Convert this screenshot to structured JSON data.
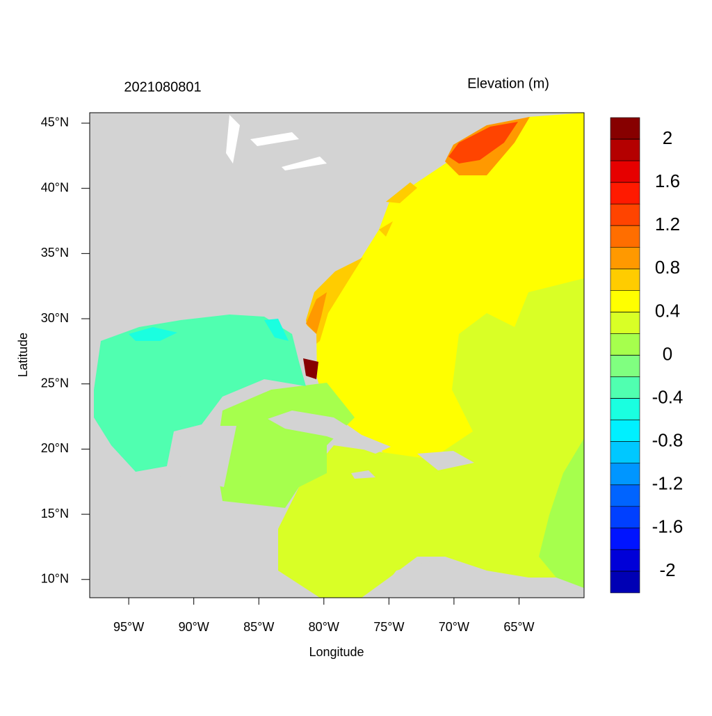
{
  "title": "2021080801",
  "colorbar_title": "Elevation (m)",
  "x_label": "Longitude",
  "y_label": "Latitude",
  "map": {
    "xlim": [
      -98,
      -60
    ],
    "ylim": [
      8.6,
      45.8
    ],
    "xticks": [
      {
        "value": -95,
        "label": "95°W"
      },
      {
        "value": -90,
        "label": "90°W"
      },
      {
        "value": -85,
        "label": "85°W"
      },
      {
        "value": -80,
        "label": "80°W"
      },
      {
        "value": -75,
        "label": "75°W"
      },
      {
        "value": -70,
        "label": "70°W"
      },
      {
        "value": -65,
        "label": "65°W"
      }
    ],
    "yticks": [
      {
        "value": 10,
        "label": "10°N"
      },
      {
        "value": 15,
        "label": "15°N"
      },
      {
        "value": 20,
        "label": "20°N"
      },
      {
        "value": 25,
        "label": "25°N"
      },
      {
        "value": 30,
        "label": "30°N"
      },
      {
        "value": 35,
        "label": "35°N"
      },
      {
        "value": 40,
        "label": "40°N"
      },
      {
        "value": 45,
        "label": "45°N"
      }
    ]
  },
  "colorbar": {
    "range": [
      -2.2,
      2.2
    ],
    "levels": [
      2,
      1.6,
      1.2,
      0.8,
      0.4,
      0,
      -0.4,
      -0.8,
      -1.2,
      -1.6,
      -2
    ],
    "colors": [
      "#870000",
      "#b40000",
      "#e60000",
      "#ff1a00",
      "#ff4400",
      "#ff6e00",
      "#ff9900",
      "#ffcc00",
      "#ffff00",
      "#d9ff26",
      "#a6ff4d",
      "#80ff80",
      "#50ffb0",
      "#1affe0",
      "#00f0ff",
      "#00c8ff",
      "#0096ff",
      "#0064ff",
      "#0040ff",
      "#0014ff",
      "#0000d8",
      "#0000b4"
    ]
  }
}
